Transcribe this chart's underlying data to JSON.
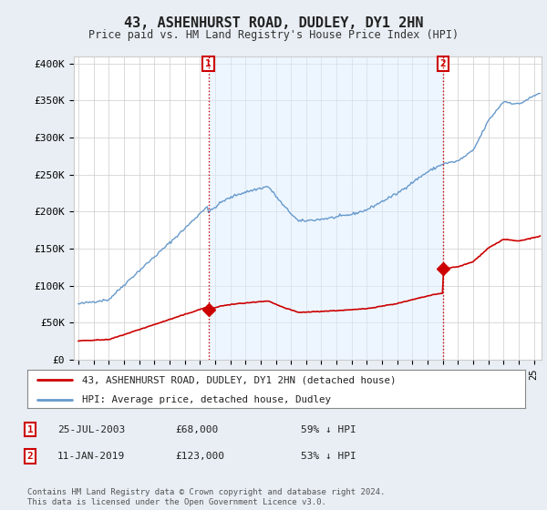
{
  "title": "43, ASHENHURST ROAD, DUDLEY, DY1 2HN",
  "subtitle": "Price paid vs. HM Land Registry's House Price Index (HPI)",
  "ylabel_ticks": [
    "£0",
    "£50K",
    "£100K",
    "£150K",
    "£200K",
    "£250K",
    "£300K",
    "£350K",
    "£400K"
  ],
  "ytick_values": [
    0,
    50000,
    100000,
    150000,
    200000,
    250000,
    300000,
    350000,
    400000
  ],
  "ylim": [
    0,
    410000
  ],
  "xlim_start": 1994.7,
  "xlim_end": 2025.5,
  "marker1_x": 2003.56,
  "marker1_price": 68000,
  "marker1_date": "25-JUL-2003",
  "marker1_pct": "59% ↓ HPI",
  "marker2_x": 2019.03,
  "marker2_price": 123000,
  "marker2_date": "11-JAN-2019",
  "marker2_pct": "53% ↓ HPI",
  "legend_line1": "43, ASHENHURST ROAD, DUDLEY, DY1 2HN (detached house)",
  "legend_line2": "HPI: Average price, detached house, Dudley",
  "footnote": "Contains HM Land Registry data © Crown copyright and database right 2024.\nThis data is licensed under the Open Government Licence v3.0.",
  "red_color": "#cc0000",
  "blue_color": "#6699cc",
  "blue_fill": "#ddeeff",
  "bg_color": "#e8eef4",
  "plot_bg": "#ffffff",
  "grid_color": "#cccccc"
}
